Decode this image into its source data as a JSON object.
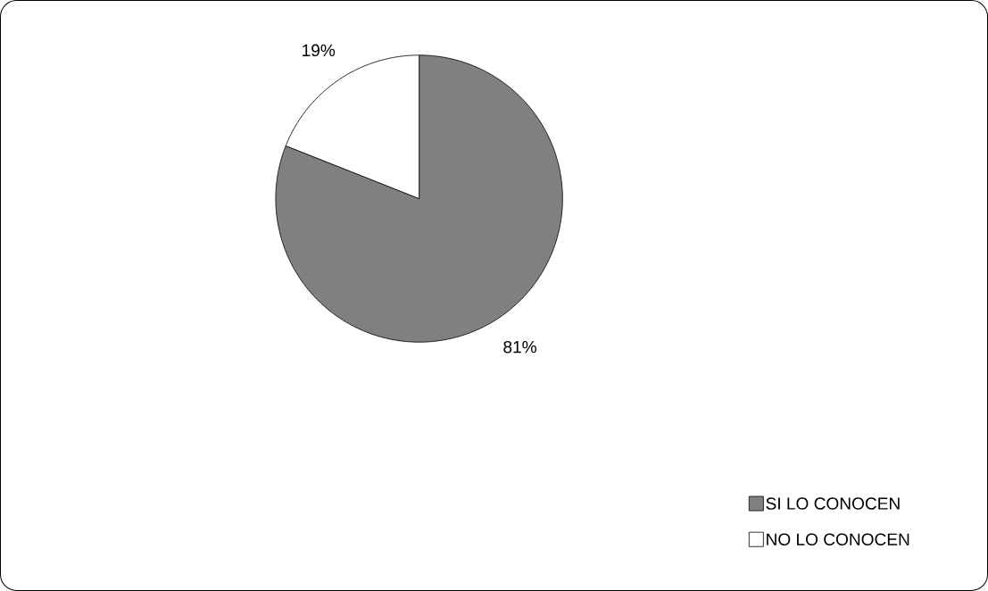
{
  "chart_data": {
    "type": "pie",
    "categories": [
      "SI LO CONOCEN",
      "NO LO CONOCEN"
    ],
    "values": [
      81,
      19
    ],
    "value_labels": [
      "81%",
      "19%"
    ],
    "colors": [
      "#808080",
      "#ffffff"
    ],
    "legend": "bottom right"
  }
}
